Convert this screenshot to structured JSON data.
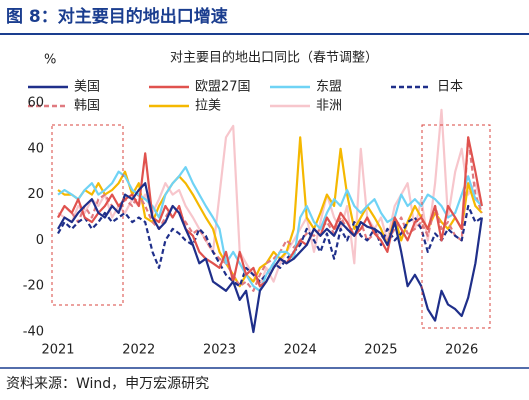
{
  "chart_data": {
    "type": "line",
    "title": "图 8：对主要目的地出口增速",
    "subtitle": "对主要目的地出口同比（春节调整）",
    "y_label": "%",
    "source": "资料来源：Wind，申万宏源研究",
    "xlim": [
      2020.95,
      2026.4
    ],
    "xticks": [
      2021,
      2022,
      2023,
      2024,
      2025,
      2026
    ],
    "ylim": [
      -40,
      60
    ],
    "yticks": [
      -40,
      -20,
      0,
      20,
      40,
      60
    ],
    "x": [
      2021,
      2021.08,
      2021.17,
      2021.25,
      2021.33,
      2021.42,
      2021.5,
      2021.58,
      2021.67,
      2021.75,
      2021.83,
      2021.92,
      2022,
      2022.08,
      2022.17,
      2022.25,
      2022.33,
      2022.42,
      2022.5,
      2022.58,
      2022.67,
      2022.75,
      2022.83,
      2022.92,
      2023,
      2023.08,
      2023.17,
      2023.25,
      2023.33,
      2023.42,
      2023.5,
      2023.58,
      2023.67,
      2023.75,
      2023.83,
      2023.92,
      2024,
      2024.08,
      2024.17,
      2024.25,
      2024.33,
      2024.42,
      2024.5,
      2024.58,
      2024.67,
      2024.75,
      2024.83,
      2024.92,
      2025,
      2025.08,
      2025.17,
      2025.25,
      2025.33,
      2025.42,
      2025.5,
      2025.58,
      2025.67,
      2025.75,
      2025.83,
      2025.92,
      2026,
      2026.08,
      2026.17,
      2026.25
    ],
    "series": [
      {
        "name": "美国",
        "color": "#1f2f8a",
        "dashed": false,
        "values": [
          5,
          10,
          8,
          12,
          15,
          18,
          12,
          10,
          15,
          12,
          20,
          18,
          22,
          25,
          10,
          5,
          8,
          15,
          12,
          5,
          -2,
          -10,
          -8,
          -18,
          -20,
          -22,
          -18,
          -26,
          -22,
          -40,
          -22,
          -18,
          -12,
          -8,
          -10,
          -8,
          -5,
          -2,
          5,
          2,
          5,
          2,
          8,
          5,
          2,
          8,
          6,
          5,
          3,
          -2,
          8,
          -5,
          -20,
          -15,
          -20,
          -30,
          -35,
          -22,
          -28,
          -30,
          -33,
          -25,
          -10,
          10
        ]
      },
      {
        "name": "欧盟27国",
        "color": "#e0524e",
        "dashed": false,
        "values": [
          10,
          15,
          12,
          18,
          10,
          8,
          12,
          15,
          20,
          15,
          18,
          20,
          15,
          38,
          10,
          8,
          15,
          10,
          15,
          5,
          2,
          -5,
          -8,
          -10,
          -12,
          -5,
          -18,
          -5,
          -15,
          -12,
          -20,
          -18,
          -12,
          -8,
          -10,
          -5,
          0,
          -2,
          5,
          2,
          10,
          5,
          12,
          8,
          2,
          5,
          10,
          3,
          0,
          -5,
          10,
          5,
          0,
          8,
          10,
          5,
          15,
          0,
          15,
          10,
          5,
          45,
          30,
          15
        ]
      },
      {
        "name": "东盟",
        "color": "#6fd3f5",
        "dashed": false,
        "values": [
          20,
          22,
          20,
          18,
          22,
          25,
          20,
          22,
          25,
          30,
          28,
          22,
          20,
          18,
          15,
          10,
          20,
          25,
          28,
          32,
          25,
          20,
          15,
          10,
          5,
          -10,
          -5,
          -10,
          -15,
          -20,
          -22,
          -15,
          -10,
          -5,
          -5,
          -8,
          10,
          15,
          8,
          5,
          12,
          18,
          15,
          22,
          15,
          12,
          15,
          18,
          12,
          8,
          10,
          20,
          15,
          18,
          15,
          20,
          18,
          15,
          10,
          12,
          20,
          28,
          18,
          15
        ]
      },
      {
        "name": "日本",
        "color": "#1f2f8a",
        "dashed": true,
        "values": [
          3,
          8,
          5,
          8,
          10,
          5,
          8,
          12,
          8,
          10,
          12,
          8,
          10,
          8,
          -5,
          -12,
          0,
          5,
          3,
          0,
          -2,
          5,
          2,
          -5,
          -10,
          -15,
          -18,
          -20,
          -12,
          -15,
          -18,
          -15,
          -10,
          -12,
          -8,
          -5,
          -2,
          5,
          0,
          -5,
          3,
          -8,
          5,
          0,
          8,
          2,
          0,
          5,
          -2,
          5,
          0,
          3,
          8,
          10,
          5,
          -5,
          3,
          0,
          5,
          2,
          0,
          15,
          8,
          10
        ]
      },
      {
        "name": "韩国",
        "color": "#e07a80",
        "dashed": true,
        "values": [
          10,
          15,
          12,
          8,
          15,
          10,
          18,
          20,
          15,
          12,
          18,
          15,
          20,
          15,
          8,
          5,
          10,
          15,
          12,
          8,
          3,
          5,
          0,
          -5,
          -8,
          -10,
          -15,
          -20,
          -18,
          -22,
          -15,
          -10,
          -8,
          -5,
          0,
          -3,
          0,
          3,
          2,
          5,
          8,
          3,
          10,
          5,
          2,
          8,
          0,
          3,
          2,
          0,
          5,
          10,
          3,
          5,
          8,
          2,
          15,
          5,
          8,
          2,
          0,
          45,
          20,
          12
        ]
      },
      {
        "name": "拉美",
        "color": "#f5b800",
        "dashed": false,
        "values": [
          22,
          20,
          20,
          18,
          22,
          20,
          25,
          20,
          22,
          25,
          30,
          20,
          25,
          10,
          8,
          15,
          20,
          25,
          28,
          25,
          20,
          15,
          10,
          5,
          -5,
          -10,
          -15,
          -20,
          -15,
          -18,
          -12,
          -10,
          -5,
          -8,
          -5,
          5,
          45,
          10,
          5,
          12,
          20,
          15,
          40,
          20,
          5,
          10,
          15,
          10,
          5,
          -2,
          10,
          0,
          8,
          15,
          10,
          5,
          12,
          8,
          5,
          10,
          5,
          25,
          15,
          12
        ]
      },
      {
        "name": "非洲",
        "color": "#f7c6cc",
        "dashed": false,
        "values": [
          12,
          10,
          8,
          15,
          12,
          18,
          15,
          20,
          10,
          15,
          12,
          18,
          15,
          20,
          12,
          18,
          25,
          20,
          22,
          15,
          10,
          5,
          0,
          -5,
          20,
          45,
          50,
          -5,
          -10,
          -15,
          -20,
          -12,
          -18,
          -10,
          -5,
          0,
          5,
          10,
          -5,
          8,
          20,
          10,
          5,
          15,
          -10,
          40,
          10,
          5,
          10,
          0,
          15,
          20,
          25,
          5,
          18,
          0,
          25,
          57,
          10,
          30,
          40,
          20,
          25,
          15
        ]
      }
    ]
  }
}
